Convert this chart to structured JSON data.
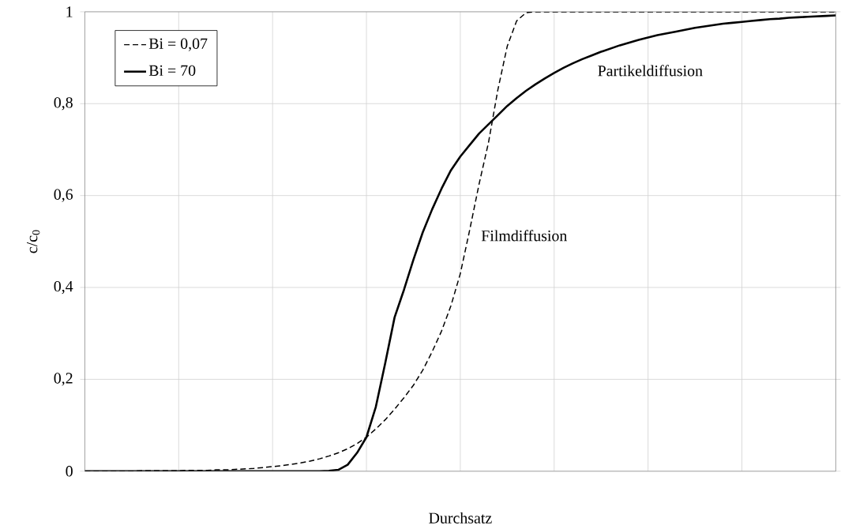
{
  "chart_data": {
    "type": "line",
    "xlabel": "Durchsatz",
    "ylabel": "c/c$_{0}$",
    "categories": [
      null,
      null,
      null,
      null,
      null,
      null,
      null,
      null,
      null,
      null,
      null,
      null,
      null,
      null,
      null,
      null,
      null,
      null,
      null,
      null,
      null,
      null,
      null,
      null,
      null,
      null,
      null,
      null,
      null,
      null,
      null,
      null,
      null,
      null,
      null,
      null,
      null,
      null,
      null,
      null,
      null,
      null,
      null,
      null,
      null,
      null,
      null,
      null,
      null,
      null,
      null,
      null,
      null,
      null,
      null,
      null,
      null,
      null,
      null,
      null,
      null,
      null,
      null,
      null,
      null,
      null,
      null,
      null,
      null,
      null,
      null,
      null,
      null,
      null,
      null,
      null,
      null,
      null,
      null,
      null,
      null
    ],
    "series": [
      {
        "name": "Bi = 0,07",
        "color": "#000000",
        "line_style": "dashed",
        "values": [
          0,
          0,
          0,
          0,
          0,
          0,
          0.001,
          0.001,
          0.001,
          0.001,
          0.001,
          0.002,
          0.002,
          0.002,
          0.003,
          0.003,
          0.004,
          0.005,
          0.006,
          0.008,
          0.01,
          0.012,
          0.015,
          0.018,
          0.022,
          0.027,
          0.033,
          0.04,
          0.049,
          0.06,
          0.074,
          0.092,
          0.112,
          0.135,
          0.16,
          0.187,
          0.22,
          0.26,
          0.305,
          0.36,
          0.43,
          0.525,
          0.625,
          0.715,
          0.83,
          0.925,
          0.98,
          0.998,
          1,
          1,
          1,
          1,
          1,
          1,
          1,
          1,
          1,
          1,
          1,
          1,
          1,
          1,
          1,
          1,
          1,
          1,
          1,
          1,
          1,
          1,
          1,
          1,
          1,
          1,
          1,
          1,
          1,
          1,
          1,
          1,
          1
        ]
      },
      {
        "name": "Bi = 70",
        "color": "#000000",
        "line_style": "solid",
        "values": [
          0,
          0,
          0,
          0,
          0,
          0,
          0,
          0,
          0,
          0,
          0,
          0,
          0,
          0,
          0,
          0,
          0,
          0,
          0,
          0,
          0,
          0,
          0,
          0,
          0,
          0,
          0.001,
          0.003,
          0.014,
          0.04,
          0.074,
          0.14,
          0.235,
          0.335,
          0.395,
          0.46,
          0.52,
          0.57,
          0.615,
          0.655,
          0.685,
          0.71,
          0.735,
          0.755,
          0.775,
          0.795,
          0.812,
          0.828,
          0.842,
          0.855,
          0.867,
          0.878,
          0.888,
          0.897,
          0.905,
          0.913,
          0.92,
          0.927,
          0.933,
          0.939,
          0.944,
          0.949,
          0.953,
          0.957,
          0.961,
          0.965,
          0.968,
          0.971,
          0.974,
          0.976,
          0.978,
          0.98,
          0.982,
          0.984,
          0.985,
          0.987,
          0.988,
          0.989,
          0.99,
          0.991,
          0.992
        ]
      }
    ],
    "ylim": [
      0,
      1
    ],
    "yticks": [
      {
        "value": 0,
        "label": "0"
      },
      {
        "value": 0.2,
        "label": "0,2"
      },
      {
        "value": 0.4,
        "label": "0,4"
      },
      {
        "value": 0.6,
        "label": "0,6"
      },
      {
        "value": 0.8,
        "label": "0,8"
      },
      {
        "value": 1,
        "label": "1"
      }
    ],
    "grid": true,
    "legend": "top left",
    "marker": "none",
    "annotations": [
      "Filmdiffusion",
      "Partikeldiffusion"
    ]
  }
}
